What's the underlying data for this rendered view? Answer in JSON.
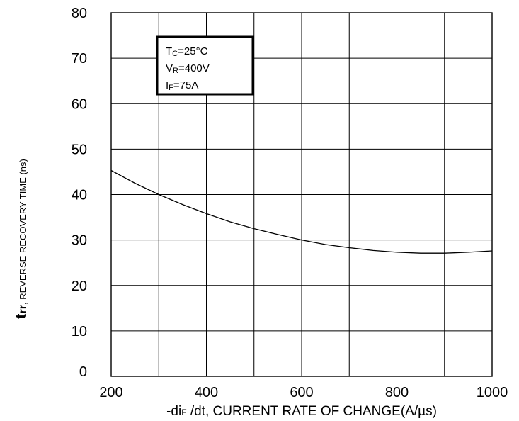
{
  "chart_data": {
    "type": "line",
    "title": "",
    "ylabel": {
      "main": "t",
      "sub": "rr",
      "rest": ", REVERSE RECOVERY TIME (ns)"
    },
    "xlabel": {
      "pre": "-di",
      "sub": "F",
      "rest": " /dt, CURRENT RATE OF CHANGE(A/µs)"
    },
    "xlim": [
      200,
      1000
    ],
    "ylim": [
      0,
      80
    ],
    "x_ticks": [
      200,
      400,
      600,
      800,
      1000
    ],
    "y_ticks": [
      0,
      10,
      20,
      30,
      40,
      50,
      60,
      70,
      80
    ],
    "grid": true,
    "x_grid_step": 100,
    "y_grid_step": 10,
    "annotation": [
      {
        "pre": "T",
        "sub": "C",
        "rest": "=25°C"
      },
      {
        "pre": "V",
        "sub": "R",
        "rest": "=400V"
      },
      {
        "pre": "I",
        "sub": "F",
        "rest": "=75A"
      }
    ],
    "series": [
      {
        "x": [
          200,
          250,
          300,
          350,
          400,
          450,
          500,
          550,
          600,
          650,
          700,
          750,
          800,
          850,
          900,
          950,
          1000
        ],
        "y": [
          45.3,
          42.5,
          40.0,
          37.8,
          35.8,
          34.0,
          32.5,
          31.2,
          30.0,
          29.0,
          28.3,
          27.7,
          27.3,
          27.1,
          27.1,
          27.3,
          27.6
        ]
      }
    ]
  }
}
